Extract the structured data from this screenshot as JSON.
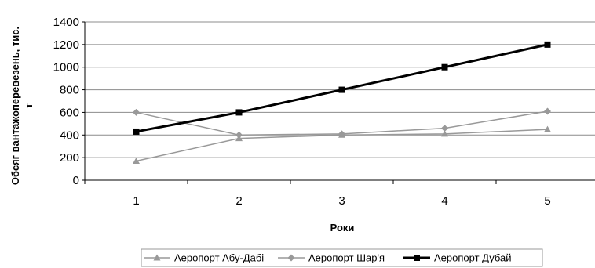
{
  "chart_data": {
    "type": "line",
    "title": "",
    "xlabel": "Роки",
    "ylabel": "Обсяг вантажоперевезень, тис. т",
    "ylabel_lines": [
      "Обсяг вантажоперевезень, тис.",
      "т"
    ],
    "x": [
      1,
      2,
      3,
      4,
      5
    ],
    "ylim": [
      0,
      1400
    ],
    "yticks": [
      0,
      200,
      400,
      600,
      800,
      1000,
      1200,
      1400
    ],
    "grid": true,
    "legend_position": "bottom",
    "series": [
      {
        "name": "Аеропорт Абу-Дабі",
        "values": [
          170,
          370,
          400,
          410,
          450
        ],
        "color": "#999999",
        "marker": "triangle"
      },
      {
        "name": "Аеропорт Шар'я",
        "values": [
          600,
          400,
          410,
          460,
          610
        ],
        "color": "#999999",
        "marker": "diamond"
      },
      {
        "name": "Аеропорт Дубай",
        "values": [
          430,
          600,
          800,
          1000,
          1200
        ],
        "color": "#000000",
        "marker": "square"
      }
    ]
  }
}
